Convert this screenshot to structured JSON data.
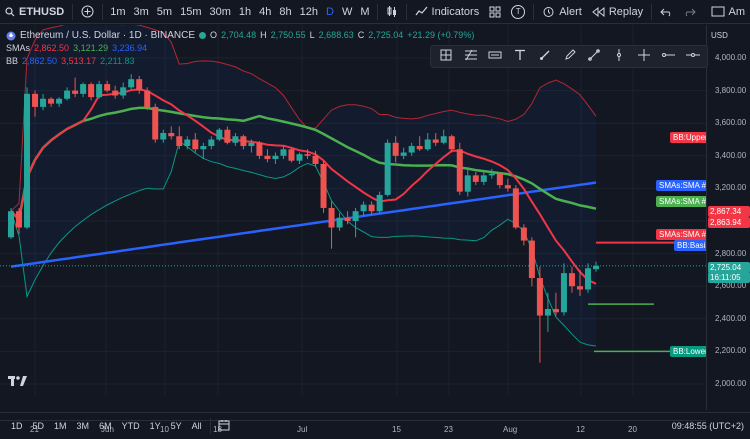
{
  "toolbar": {
    "symbol": "ETHUSD",
    "timeframes": [
      "1m",
      "3m",
      "5m",
      "15m",
      "30m",
      "1h",
      "4h",
      "8h",
      "12h",
      "D",
      "W",
      "M"
    ],
    "active_timeframe": "D",
    "indicators_label": "Indicators",
    "t_badge": "T",
    "alert_label": "Alert",
    "replay_label": "Replay",
    "right_label": "Am"
  },
  "legend": {
    "title": "Ethereum / U.S. Dollar · 1D · BINANCE",
    "o_label": "O",
    "o_val": "2,704.48",
    "h_label": "H",
    "h_val": "2,750.55",
    "l_label": "L",
    "l_val": "2,688.63",
    "c_label": "C",
    "c_val": "2,725.04",
    "change": "+21.29 (+0.79%)",
    "sma_label": "SMAs",
    "sma_v1": "2,862.50",
    "sma_v2": "3,121.29",
    "sma_v3": "3,236.94",
    "bb_label": "BB",
    "bb_v1": "2,862.50",
    "bb_v2": "3,513.17",
    "bb_v3": "2,211.83"
  },
  "price_scale": {
    "currency": "USD",
    "ticks": [
      "4,000.00",
      "3,800.00",
      "3,600.00",
      "3,400.00",
      "3,200.00",
      "3,000.00",
      "2,800.00",
      "2,600.00",
      "2,400.00",
      "2,200.00",
      "2,000.00"
    ],
    "label_sma5": "2,867.34",
    "label_sma2": "2,863.94",
    "label_price": "2,725.04",
    "label_countdown": "16:11:05"
  },
  "series_labels": {
    "bb_upper": "BB:Upper",
    "sma5": "SMAs:SMA #5",
    "sma2": "SMAs:SMA #2",
    "sma1": "SMAs:SMA #1",
    "bb_basis": "BB:Basis",
    "bb_lower": "BB:Lower"
  },
  "time_axis": [
    "21",
    "Jun",
    "10",
    "18",
    "Jul",
    "15",
    "23",
    "Aug",
    "12",
    "20"
  ],
  "bottom": {
    "ranges": [
      "1D",
      "5D",
      "1M",
      "3M",
      "6M",
      "YTD",
      "1Y",
      "5Y",
      "All"
    ],
    "clock": "09:48:55 (UTC+2)"
  },
  "colors": {
    "up": "#26a69a",
    "down": "#ef5350",
    "sma_short": "#f23645",
    "sma_mid": "#4caf50",
    "sma_long": "#2962ff",
    "bb_band": "#f23645",
    "bb_lower": "#089981"
  },
  "chart_data": {
    "type": "candlestick",
    "ylim": [
      2000,
      4000
    ],
    "candles": [
      {
        "o": 2900,
        "h": 3080,
        "l": 2890,
        "c": 3060
      },
      {
        "o": 3060,
        "h": 3080,
        "l": 2920,
        "c": 2960
      },
      {
        "o": 2960,
        "h": 3820,
        "l": 2950,
        "c": 3780
      },
      {
        "o": 3780,
        "h": 3800,
        "l": 3640,
        "c": 3700
      },
      {
        "o": 3700,
        "h": 3780,
        "l": 3680,
        "c": 3750
      },
      {
        "o": 3750,
        "h": 3760,
        "l": 3700,
        "c": 3720
      },
      {
        "o": 3720,
        "h": 3760,
        "l": 3700,
        "c": 3750
      },
      {
        "o": 3750,
        "h": 3820,
        "l": 3740,
        "c": 3800
      },
      {
        "o": 3800,
        "h": 3880,
        "l": 3760,
        "c": 3780
      },
      {
        "o": 3780,
        "h": 3850,
        "l": 3760,
        "c": 3840
      },
      {
        "o": 3840,
        "h": 3850,
        "l": 3740,
        "c": 3760
      },
      {
        "o": 3760,
        "h": 3860,
        "l": 3750,
        "c": 3840
      },
      {
        "o": 3840,
        "h": 3860,
        "l": 3790,
        "c": 3800
      },
      {
        "o": 3800,
        "h": 3830,
        "l": 3750,
        "c": 3770
      },
      {
        "o": 3770,
        "h": 3850,
        "l": 3750,
        "c": 3820
      },
      {
        "o": 3820,
        "h": 3900,
        "l": 3810,
        "c": 3870
      },
      {
        "o": 3870,
        "h": 3890,
        "l": 3780,
        "c": 3800
      },
      {
        "o": 3800,
        "h": 3820,
        "l": 3680,
        "c": 3700
      },
      {
        "o": 3700,
        "h": 3720,
        "l": 3480,
        "c": 3500
      },
      {
        "o": 3500,
        "h": 3560,
        "l": 3480,
        "c": 3540
      },
      {
        "o": 3540,
        "h": 3580,
        "l": 3500,
        "c": 3520
      },
      {
        "o": 3520,
        "h": 3580,
        "l": 3440,
        "c": 3460
      },
      {
        "o": 3460,
        "h": 3520,
        "l": 3440,
        "c": 3500
      },
      {
        "o": 3500,
        "h": 3540,
        "l": 3420,
        "c": 3440
      },
      {
        "o": 3440,
        "h": 3480,
        "l": 3380,
        "c": 3460
      },
      {
        "o": 3460,
        "h": 3520,
        "l": 3440,
        "c": 3500
      },
      {
        "o": 3500,
        "h": 3570,
        "l": 3490,
        "c": 3560
      },
      {
        "o": 3560,
        "h": 3580,
        "l": 3470,
        "c": 3480
      },
      {
        "o": 3480,
        "h": 3540,
        "l": 3460,
        "c": 3520
      },
      {
        "o": 3520,
        "h": 3530,
        "l": 3440,
        "c": 3460
      },
      {
        "o": 3460,
        "h": 3500,
        "l": 3420,
        "c": 3480
      },
      {
        "o": 3480,
        "h": 3490,
        "l": 3380,
        "c": 3400
      },
      {
        "o": 3400,
        "h": 3440,
        "l": 3360,
        "c": 3380
      },
      {
        "o": 3380,
        "h": 3420,
        "l": 3350,
        "c": 3400
      },
      {
        "o": 3400,
        "h": 3460,
        "l": 3380,
        "c": 3440
      },
      {
        "o": 3440,
        "h": 3450,
        "l": 3360,
        "c": 3370
      },
      {
        "o": 3370,
        "h": 3420,
        "l": 3350,
        "c": 3410
      },
      {
        "o": 3410,
        "h": 3440,
        "l": 3380,
        "c": 3400
      },
      {
        "o": 3400,
        "h": 3430,
        "l": 3330,
        "c": 3350
      },
      {
        "o": 3350,
        "h": 3370,
        "l": 3050,
        "c": 3080
      },
      {
        "o": 3080,
        "h": 3120,
        "l": 2830,
        "c": 2960
      },
      {
        "o": 2960,
        "h": 3050,
        "l": 2940,
        "c": 3020
      },
      {
        "o": 3020,
        "h": 3060,
        "l": 2980,
        "c": 3000
      },
      {
        "o": 3000,
        "h": 3080,
        "l": 2900,
        "c": 3060
      },
      {
        "o": 3060,
        "h": 3120,
        "l": 3030,
        "c": 3100
      },
      {
        "o": 3100,
        "h": 3120,
        "l": 3040,
        "c": 3060
      },
      {
        "o": 3060,
        "h": 3180,
        "l": 3050,
        "c": 3160
      },
      {
        "o": 3160,
        "h": 3500,
        "l": 3150,
        "c": 3480
      },
      {
        "o": 3480,
        "h": 3520,
        "l": 3360,
        "c": 3400
      },
      {
        "o": 3400,
        "h": 3450,
        "l": 3380,
        "c": 3420
      },
      {
        "o": 3420,
        "h": 3480,
        "l": 3400,
        "c": 3460
      },
      {
        "o": 3460,
        "h": 3520,
        "l": 3430,
        "c": 3440
      },
      {
        "o": 3440,
        "h": 3540,
        "l": 3430,
        "c": 3500
      },
      {
        "o": 3500,
        "h": 3540,
        "l": 3460,
        "c": 3480
      },
      {
        "o": 3480,
        "h": 3560,
        "l": 3470,
        "c": 3520
      },
      {
        "o": 3520,
        "h": 3530,
        "l": 3420,
        "c": 3440
      },
      {
        "o": 3440,
        "h": 3480,
        "l": 3160,
        "c": 3180
      },
      {
        "o": 3180,
        "h": 3320,
        "l": 3150,
        "c": 3280
      },
      {
        "o": 3280,
        "h": 3300,
        "l": 3220,
        "c": 3240
      },
      {
        "o": 3240,
        "h": 3300,
        "l": 3220,
        "c": 3280
      },
      {
        "o": 3280,
        "h": 3320,
        "l": 3260,
        "c": 3290
      },
      {
        "o": 3290,
        "h": 3300,
        "l": 3200,
        "c": 3220
      },
      {
        "o": 3220,
        "h": 3260,
        "l": 3180,
        "c": 3200
      },
      {
        "o": 3200,
        "h": 3220,
        "l": 2950,
        "c": 2960
      },
      {
        "o": 2960,
        "h": 2980,
        "l": 2850,
        "c": 2880
      },
      {
        "o": 2880,
        "h": 2900,
        "l": 2600,
        "c": 2650
      },
      {
        "o": 2650,
        "h": 2720,
        "l": 2130,
        "c": 2420
      },
      {
        "o": 2420,
        "h": 2560,
        "l": 2320,
        "c": 2460
      },
      {
        "o": 2460,
        "h": 2560,
        "l": 2420,
        "c": 2440
      },
      {
        "o": 2440,
        "h": 2740,
        "l": 2420,
        "c": 2680
      },
      {
        "o": 2680,
        "h": 2720,
        "l": 2560,
        "c": 2600
      },
      {
        "o": 2600,
        "h": 2700,
        "l": 2540,
        "c": 2580
      },
      {
        "o": 2580,
        "h": 2740,
        "l": 2560,
        "c": 2710
      },
      {
        "o": 2704.48,
        "h": 2750.55,
        "l": 2688.63,
        "c": 2725.04
      }
    ]
  }
}
